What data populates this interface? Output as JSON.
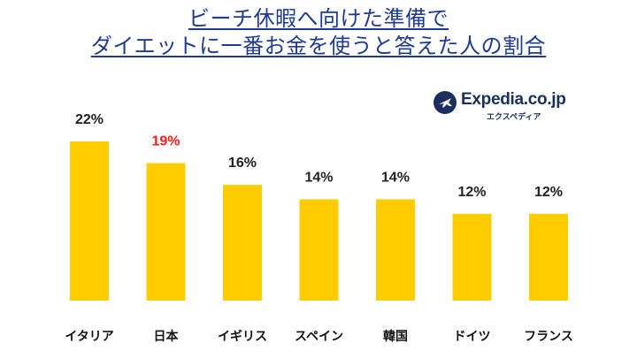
{
  "title": {
    "line1": "ビーチ休暇へ向けた準備で",
    "line2": "ダイエットに一番お金を使うと答えた人の割合"
  },
  "logo": {
    "text": "Expedia.co.jp",
    "subtext": "エクスペディア",
    "icon": "airplane-globe-icon"
  },
  "colors": {
    "title": "#1f3a93",
    "bar": "#ffcc00",
    "highlight_label": "#ff1a1a"
  },
  "chart_data": {
    "type": "bar",
    "categories": [
      "イタリア",
      "日本",
      "イギリス",
      "スペイン",
      "韓国",
      "ドイツ",
      "フランス"
    ],
    "values": [
      22,
      19,
      16,
      14,
      14,
      12,
      12
    ],
    "value_labels": [
      "22%",
      "19%",
      "16%",
      "14%",
      "14%",
      "12%",
      "12%"
    ],
    "highlight_index": 1,
    "ylim": [
      0,
      22
    ],
    "grid": false,
    "legend": "none"
  }
}
